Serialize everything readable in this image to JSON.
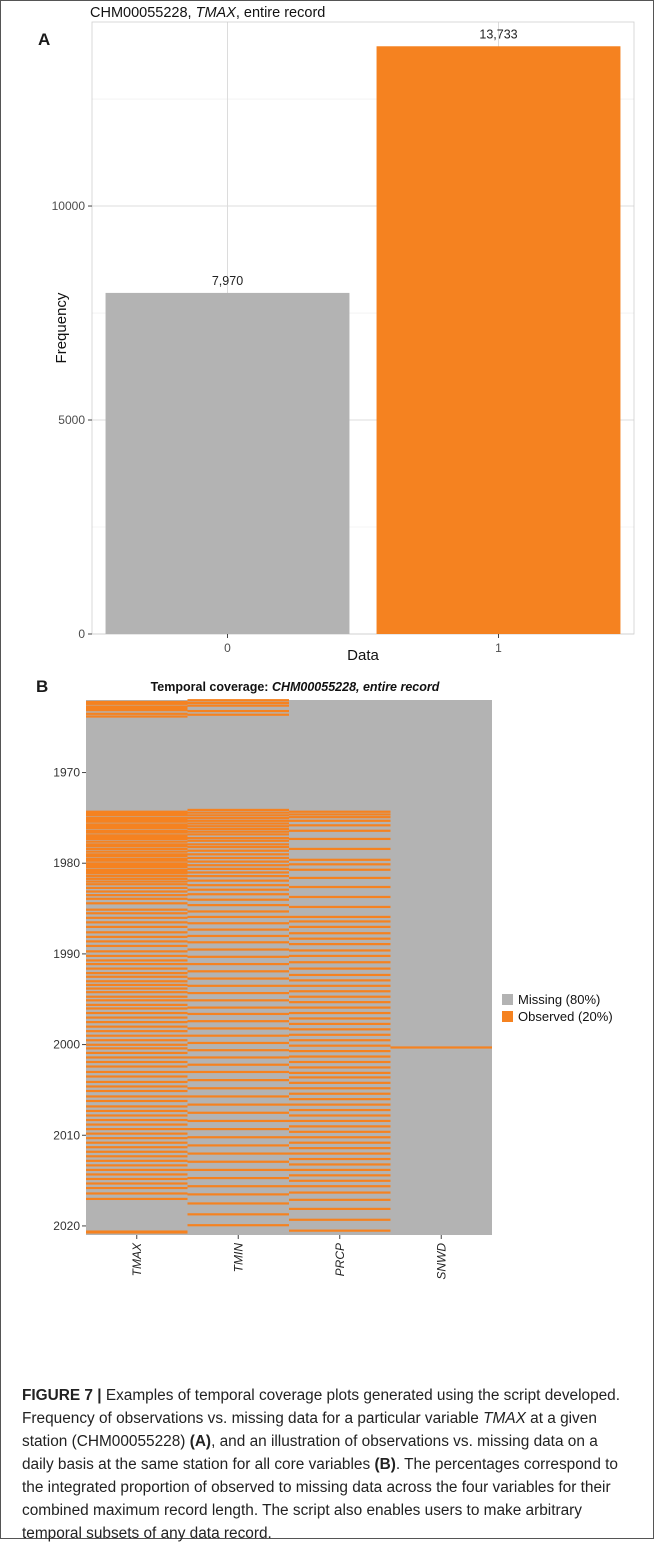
{
  "chart_data": [
    {
      "type": "bar",
      "panel_label": "A",
      "title_parts": [
        "CHM00055228, ",
        "TMAX",
        ", entire record"
      ],
      "xlabel": "Data",
      "ylabel": "Frequency",
      "categories": [
        "0",
        "1"
      ],
      "values": [
        7970,
        13733
      ],
      "value_labels": [
        "7,970",
        "13,733"
      ],
      "colors": [
        "#b3b3b3",
        "#f58220"
      ],
      "ylim": [
        0,
        14300
      ],
      "y_ticks": [
        0,
        5000,
        10000
      ],
      "grid": true
    },
    {
      "type": "heatmap",
      "panel_label": "B",
      "title_parts": [
        "Temporal coverage: ",
        "CHM00055228, entire record"
      ],
      "x_categories": [
        "TMAX",
        "TMIN",
        "PRCP",
        "SNWD"
      ],
      "y_range": [
        1962,
        2021
      ],
      "y_ticks": [
        1970,
        1980,
        1990,
        2000,
        2010,
        2020
      ],
      "legend_placement": "right",
      "legend": [
        {
          "label": "Missing (80%)",
          "color": "#b3b3b3"
        },
        {
          "label": "Observed (20%)",
          "color": "#f58220"
        }
      ],
      "observed_years": {
        "TMAX": [
          1962.1,
          1962.3,
          1962.6,
          1962.8,
          1963.0,
          1963.4,
          1963.7,
          1974.2,
          1974.4,
          1974.6,
          1974.9,
          1975.1,
          1975.3,
          1975.6,
          1975.8,
          1976.0,
          1976.3,
          1976.5,
          1976.8,
          1977.0,
          1977.2,
          1977.5,
          1977.8,
          1978.0,
          1978.3,
          1978.6,
          1978.9,
          1979.1,
          1979.4,
          1979.6,
          1979.9,
          1980.1,
          1980.3,
          1980.6,
          1980.8,
          1981.0,
          1981.3,
          1981.6,
          1981.9,
          1982.2,
          1982.6,
          1983.0,
          1983.4,
          1983.8,
          1984.3,
          1985.0,
          1985.4,
          1985.9,
          1986.4,
          1986.9,
          1987.5,
          1988.0,
          1988.5,
          1989.0,
          1989.6,
          1990.1,
          1990.6,
          1991.0,
          1991.5,
          1992.0,
          1992.4,
          1992.9,
          1993.3,
          1993.7,
          1994.1,
          1994.6,
          1995.0,
          1995.5,
          1995.9,
          1996.4,
          1996.9,
          1997.4,
          1997.9,
          1998.4,
          1998.9,
          1999.4,
          1999.9,
          2000.3,
          2000.8,
          2001.3,
          2001.8,
          2002.3,
          2002.9,
          2003.4,
          2004.0,
          2004.5,
          2005.0,
          2005.6,
          2006.1,
          2006.7,
          2007.2,
          2007.7,
          2008.2,
          2008.7,
          2009.2,
          2009.7,
          2010.2,
          2010.7,
          2011.2,
          2011.7,
          2012.2,
          2012.7,
          2013.2,
          2013.7,
          2014.2,
          2014.7,
          2015.2,
          2015.7,
          2016.3,
          2016.9,
          2020.5,
          2020.6
        ],
        "TMIN": [
          1961.9,
          1962.2,
          1962.5,
          1963.1,
          1963.5,
          1974.0,
          1974.3,
          1974.6,
          1974.9,
          1975.2,
          1975.5,
          1975.8,
          1976.1,
          1976.4,
          1976.7,
          1977.1,
          1977.4,
          1977.8,
          1978.1,
          1978.5,
          1978.9,
          1979.3,
          1979.7,
          1980.1,
          1980.5,
          1980.9,
          1981.3,
          1981.8,
          1982.3,
          1982.8,
          1983.3,
          1983.9,
          1984.5,
          1985.2,
          1985.8,
          1986.5,
          1987.2,
          1987.9,
          1988.6,
          1989.4,
          1990.2,
          1991.0,
          1991.8,
          1992.6,
          1993.4,
          1994.2,
          1995.0,
          1995.8,
          1996.5,
          1997.3,
          1998.1,
          1998.9,
          1999.7,
          2000.5,
          2001.3,
          2002.1,
          2002.9,
          2003.8,
          2004.7,
          2005.6,
          2006.5,
          2007.4,
          2008.3,
          2009.2,
          2010.1,
          2011.0,
          2011.9,
          2012.8,
          2013.7,
          2014.6,
          2015.5,
          2016.4,
          2017.4,
          2018.6,
          2019.8
        ],
        "PRCP": [
          1974.2,
          1974.5,
          1974.8,
          1975.2,
          1975.7,
          1976.3,
          1977.2,
          1978.3,
          1979.5,
          1980.0,
          1980.6,
          1981.5,
          1982.5,
          1983.6,
          1984.7,
          1985.8,
          1986.3,
          1986.9,
          1987.6,
          1988.2,
          1988.8,
          1989.5,
          1990.1,
          1990.8,
          1991.5,
          1992.2,
          1992.8,
          1993.4,
          1994.0,
          1994.6,
          1995.2,
          1995.8,
          1996.4,
          1997.0,
          1997.6,
          1998.2,
          1998.8,
          1999.4,
          2000.0,
          2000.6,
          2001.2,
          2001.8,
          2002.4,
          2003.0,
          2003.5,
          2004.1,
          2004.7,
          2005.3,
          2005.9,
          2006.5,
          2007.1,
          2007.7,
          2008.3,
          2008.9,
          2009.5,
          2010.1,
          2010.7,
          2011.3,
          2011.9,
          2012.5,
          2013.1,
          2013.7,
          2014.3,
          2014.9,
          2015.5,
          2016.2,
          2017.0,
          2018.0,
          2019.2,
          2020.4
        ],
        "SNWD": [
          2000.2
        ]
      }
    }
  ],
  "caption": {
    "label": "FIGURE 7 |",
    "s1": " Examples of temporal coverage plots generated using the script developed. Frequency of observations vs. missing data for a particular variable ",
    "var": "TMAX",
    "s2": " at a given station (CHM00055228) ",
    "refA": "(A)",
    "s3": ", and an illustration of observations vs. missing data on a daily basis at the same station for all core variables ",
    "refB": "(B)",
    "s4": ". The percentages correspond to the integrated proportion of observed to missing data across the four variables for their combined maximum record length. The script also enables users to make arbitrary temporal subsets of any data record."
  }
}
